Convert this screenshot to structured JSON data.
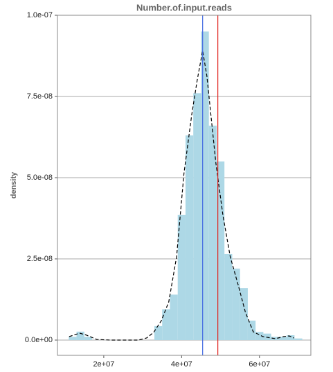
{
  "chart_data": {
    "type": "histogram",
    "title": "Number.of.input.reads",
    "ylabel": "density",
    "bins": [
      11000000,
      13000000,
      15000000,
      17000000,
      19000000,
      21000000,
      23000000,
      25000000,
      27000000,
      29000000,
      31000000,
      33000000,
      35000000,
      37000000,
      39000000,
      41000000,
      43000000,
      45000000,
      47000000,
      49000000,
      51000000,
      53000000,
      55000000,
      57000000,
      59000000,
      61000000,
      63000000,
      65000000,
      67000000,
      69000000,
      71000000
    ],
    "values": [
      1e-09,
      2.6e-09,
      1e-09,
      0,
      0,
      0,
      0,
      0,
      0,
      0,
      0,
      4.3e-09,
      9.5e-09,
      1.4e-08,
      3.85e-08,
      6.3e-08,
      7.6e-08,
      9.5e-08,
      6.6e-08,
      5.5e-08,
      2.65e-08,
      2.2e-08,
      1.6e-08,
      6e-09,
      2.5e-09,
      2e-09,
      1e-09,
      1e-09,
      1.5e-09,
      5e-10
    ],
    "color": "#add8e6",
    "density": {
      "color": "#000000",
      "x": [
        11100000,
        13800000,
        15600000,
        18200000,
        21800000,
        28900000,
        31000000,
        32800000,
        34800000,
        36700000,
        38700000,
        40600000,
        42600000,
        44000000,
        45400000,
        46500000,
        47600000,
        48800000,
        50600000,
        52500000,
        54500000,
        56400000,
        58400000,
        60900000,
        64100000,
        66200000,
        67600000,
        68900000
      ],
      "y": [
        1.07e-09,
        2.14e-09,
        1.5e-09,
        2e-10,
        0,
        0,
        6.4e-10,
        2.35e-09,
        6e-09,
        1.18e-08,
        2.56e-08,
        5.13e-08,
        6.94e-08,
        8e-08,
        8.91e-08,
        8.12e-08,
        6.84e-08,
        5.45e-08,
        3.85e-08,
        2.56e-08,
        1.71e-08,
        8.5e-09,
        2.56e-09,
        1.07e-09,
        4.3e-10,
        1.07e-09,
        1.28e-09,
        6.4e-10
      ]
    },
    "vlines": [
      {
        "value": 45400000,
        "color": "#4169e1"
      },
      {
        "value": 49300000,
        "color": "#e0201b"
      }
    ],
    "xlim": [
      8100000,
      73200000
    ],
    "ylim": [
      -4.7e-09,
      1e-07
    ],
    "xticks": [
      {
        "value": 20000000,
        "label": "2e+07"
      },
      {
        "value": 40000000,
        "label": "4e+07"
      },
      {
        "value": 60000000,
        "label": "6e+07"
      }
    ],
    "yticks": [
      {
        "value": 0,
        "label": "0.0e+00"
      },
      {
        "value": 2.5e-08,
        "label": "2.5e-08"
      },
      {
        "value": 5e-08,
        "label": "5.0e-08"
      },
      {
        "value": 7.5e-08,
        "label": "7.5e-08"
      },
      {
        "value": 1e-07,
        "label": "1.0e-07"
      }
    ],
    "grid": true
  }
}
